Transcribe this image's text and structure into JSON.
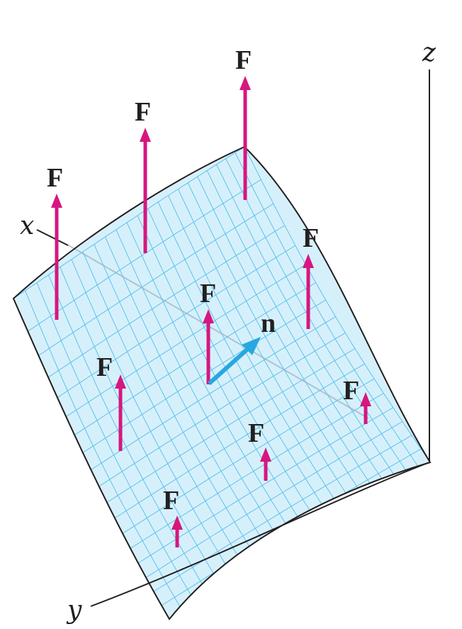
{
  "axes": {
    "x": "x",
    "y": "y",
    "z": "z"
  },
  "vector_field_label": "F",
  "normal_label": "n",
  "colors": {
    "surface_fill": "#d6f0fb",
    "surface_grid": "#5cc3ec",
    "surface_edge": "#231f20",
    "field_vector": "#d6177f",
    "normal_vector": "#27a8e0",
    "axis": "#231f20"
  }
}
